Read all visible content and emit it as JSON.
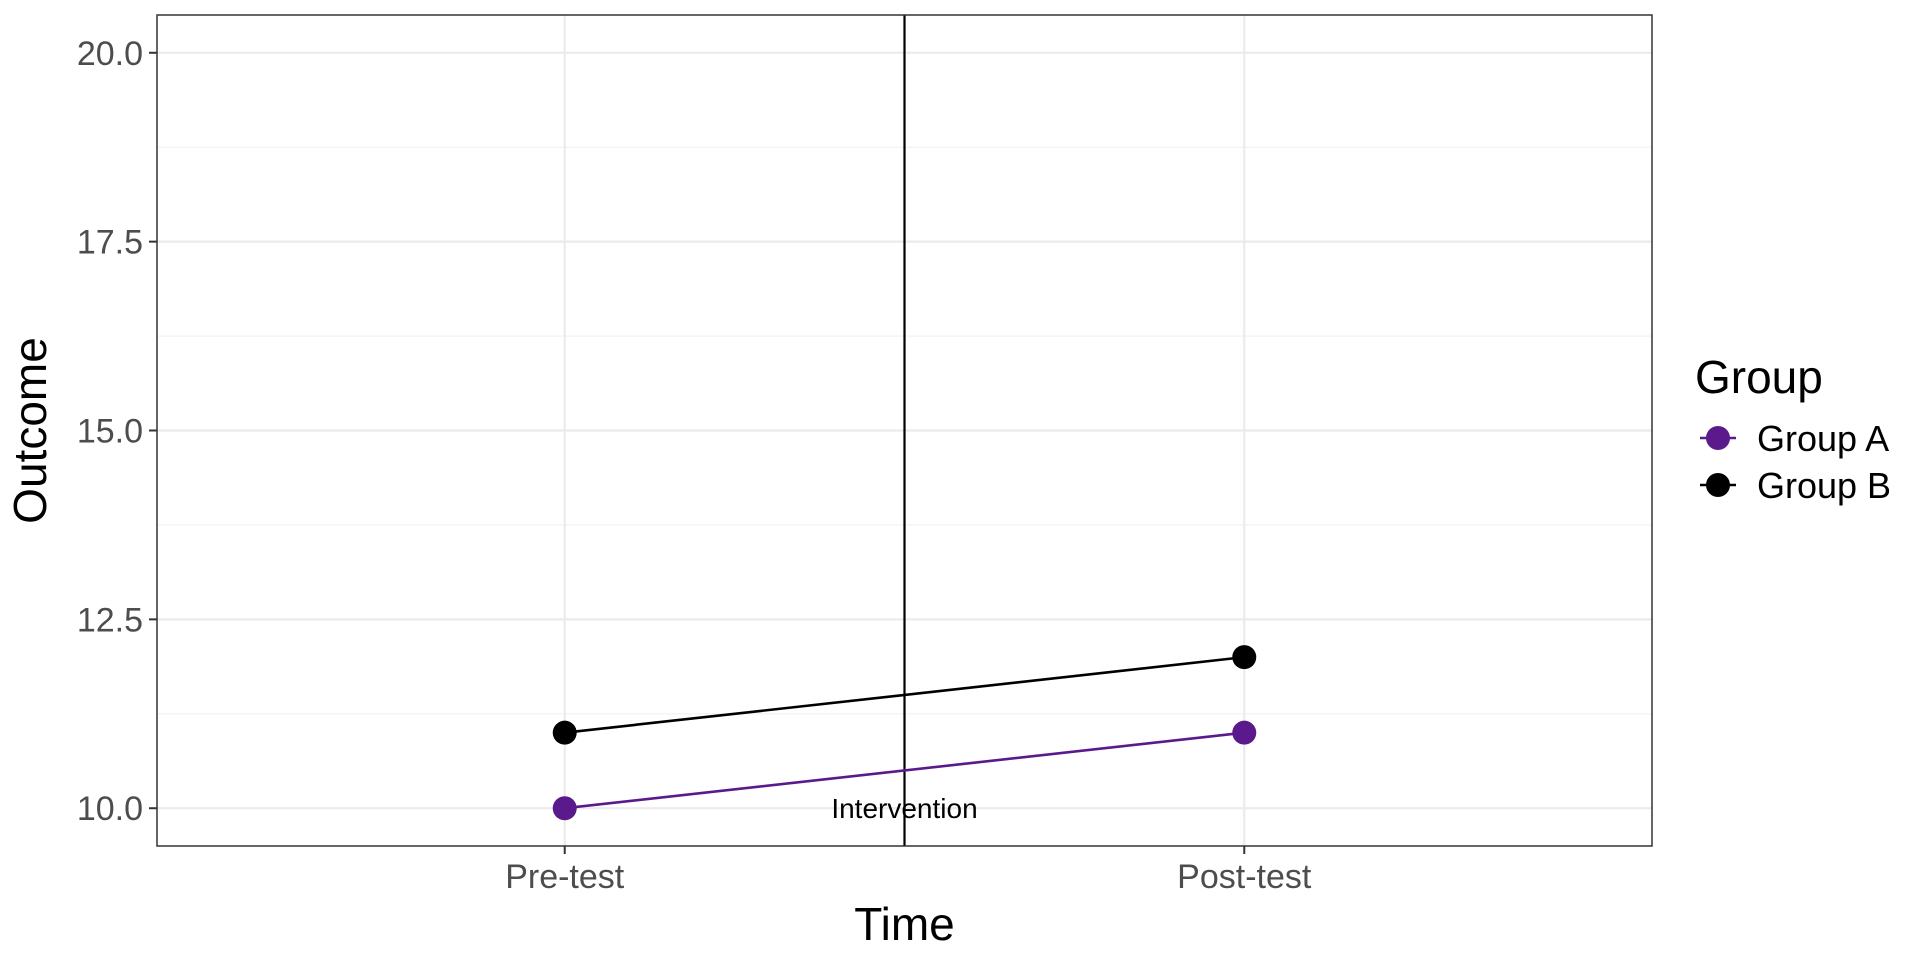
{
  "chart_data": {
    "type": "line",
    "title": "",
    "xlabel": "Time",
    "ylabel": "Outcome",
    "categories": [
      "Pre-test",
      "Post-test"
    ],
    "ylim": [
      9.5,
      20.5
    ],
    "yticks": [
      10.0,
      12.5,
      15.0,
      17.5,
      20.0
    ],
    "ytick_labels": [
      "10.0",
      "12.5",
      "15.0",
      "17.5",
      "20.0"
    ],
    "grid": true,
    "legend": {
      "title": "Group",
      "placement": "right"
    },
    "series": [
      {
        "name": "Group A",
        "color": "#5B1A8B",
        "values": [
          10,
          11
        ]
      },
      {
        "name": "Group B",
        "color": "#000000",
        "values": [
          11,
          12
        ]
      }
    ],
    "annotations": [
      {
        "type": "vline",
        "x": 1.5,
        "label": "Intervention",
        "label_y": 10.0
      }
    ]
  }
}
